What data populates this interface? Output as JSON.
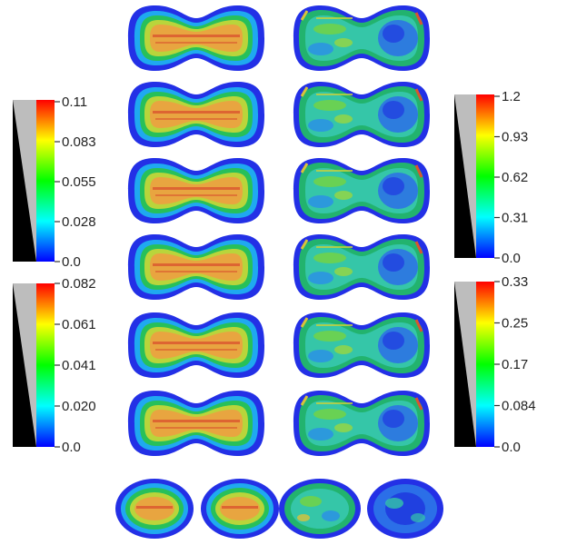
{
  "colorbars": [
    {
      "id": "top-left",
      "ticks": [
        "0.11",
        "0.083",
        "0.055",
        "0.028",
        "0.0"
      ]
    },
    {
      "id": "bottom-left",
      "ticks": [
        "0.082",
        "0.061",
        "0.041",
        "0.020",
        "0.0"
      ]
    },
    {
      "id": "top-right",
      "ticks": [
        "1.2",
        "0.93",
        "0.62",
        "0.31",
        "0.0"
      ]
    },
    {
      "id": "bottom-right",
      "ticks": [
        "0.33",
        "0.25",
        "0.17",
        "0.084",
        "0.0"
      ]
    }
  ],
  "colormap": [
    "#0000ff",
    "#00ffff",
    "#00ff00",
    "#ffff00",
    "#ff0000"
  ],
  "rows": 7,
  "columns": [
    "smooth-field",
    "turbulent-field"
  ]
}
